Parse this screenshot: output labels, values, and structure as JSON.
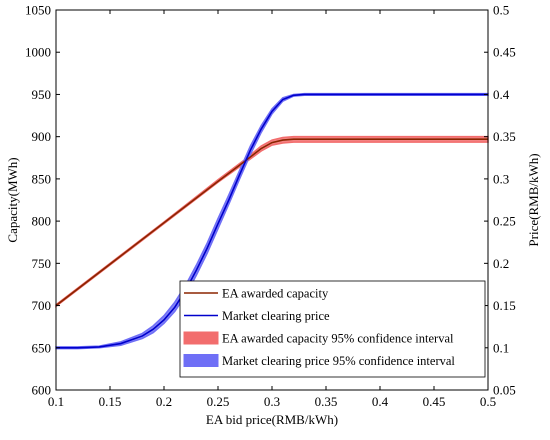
{
  "chart_data": {
    "type": "line",
    "xlabel": "EA bid price(RMB/kWh)",
    "ylabel_left": "Capacity(MWh)",
    "ylabel_right": "Price(RMB/kWh)",
    "xlim": [
      0.1,
      0.5
    ],
    "ylim_left": [
      600,
      1050
    ],
    "ylim_right": [
      0.05,
      0.5
    ],
    "x_ticks": [
      "0.1",
      "0.15",
      "0.2",
      "0.25",
      "0.3",
      "0.35",
      "0.4",
      "0.45",
      "0.5"
    ],
    "y_left_ticks": [
      "600",
      "650",
      "700",
      "750",
      "800",
      "850",
      "900",
      "950",
      "1000",
      "1050"
    ],
    "y_right_ticks": [
      "0.05",
      "0.1",
      "0.15",
      "0.2",
      "0.25",
      "0.3",
      "0.35",
      "0.4",
      "0.45",
      "0.5"
    ],
    "grid": false,
    "legend_position": "bottom-right",
    "series": [
      {
        "name": "EA awarded capacity",
        "axis": "left",
        "color": "#8B2500",
        "x": [
          0.1,
          0.15,
          0.2,
          0.25,
          0.275,
          0.29,
          0.3,
          0.31,
          0.32,
          0.35,
          0.4,
          0.45,
          0.5
        ],
        "values": [
          700,
          749,
          798,
          847,
          871,
          886,
          893,
          896,
          897,
          897,
          897,
          897,
          897
        ]
      },
      {
        "name": "Market clearing price",
        "axis": "right",
        "color": "#0000CC",
        "x": [
          0.1,
          0.12,
          0.14,
          0.16,
          0.18,
          0.19,
          0.2,
          0.21,
          0.22,
          0.23,
          0.24,
          0.25,
          0.26,
          0.27,
          0.28,
          0.29,
          0.3,
          0.31,
          0.32,
          0.33,
          0.35,
          0.4,
          0.45,
          0.5
        ],
        "values": [
          0.1,
          0.1,
          0.101,
          0.105,
          0.114,
          0.122,
          0.133,
          0.148,
          0.168,
          0.192,
          0.218,
          0.247,
          0.275,
          0.305,
          0.334,
          0.359,
          0.38,
          0.394,
          0.399,
          0.4,
          0.4,
          0.4,
          0.4,
          0.4
        ]
      },
      {
        "name": "EA awarded capacity 95% confidence interval",
        "axis": "left",
        "color": "#F26D6D",
        "x": [
          0.1,
          0.15,
          0.2,
          0.25,
          0.275,
          0.29,
          0.3,
          0.31,
          0.32,
          0.35,
          0.4,
          0.45,
          0.5
        ],
        "lower": [
          699,
          748,
          797,
          846,
          869,
          883,
          890,
          892.5,
          893.5,
          893.5,
          893.5,
          893.5,
          893.5
        ],
        "upper": [
          701,
          750,
          799,
          849,
          873,
          889,
          896,
          899,
          900,
          900,
          900,
          900,
          900
        ]
      },
      {
        "name": "Market clearing price 95% confidence interval",
        "axis": "right",
        "color": "#6F6FF6",
        "x": [
          0.1,
          0.12,
          0.14,
          0.16,
          0.18,
          0.19,
          0.2,
          0.21,
          0.22,
          0.23,
          0.24,
          0.25,
          0.26,
          0.27,
          0.28,
          0.29,
          0.3,
          0.31,
          0.32,
          0.33,
          0.35,
          0.4,
          0.45,
          0.5
        ],
        "lower": [
          0.099,
          0.099,
          0.1,
          0.103,
          0.111,
          0.118,
          0.129,
          0.143,
          0.162,
          0.186,
          0.212,
          0.241,
          0.27,
          0.3,
          0.329,
          0.355,
          0.377,
          0.392,
          0.398,
          0.399,
          0.399,
          0.399,
          0.399,
          0.399
        ],
        "upper": [
          0.101,
          0.101,
          0.102,
          0.107,
          0.117,
          0.126,
          0.138,
          0.154,
          0.174,
          0.198,
          0.224,
          0.253,
          0.281,
          0.31,
          0.339,
          0.363,
          0.383,
          0.396,
          0.4,
          0.401,
          0.401,
          0.401,
          0.401,
          0.401
        ]
      }
    ]
  }
}
